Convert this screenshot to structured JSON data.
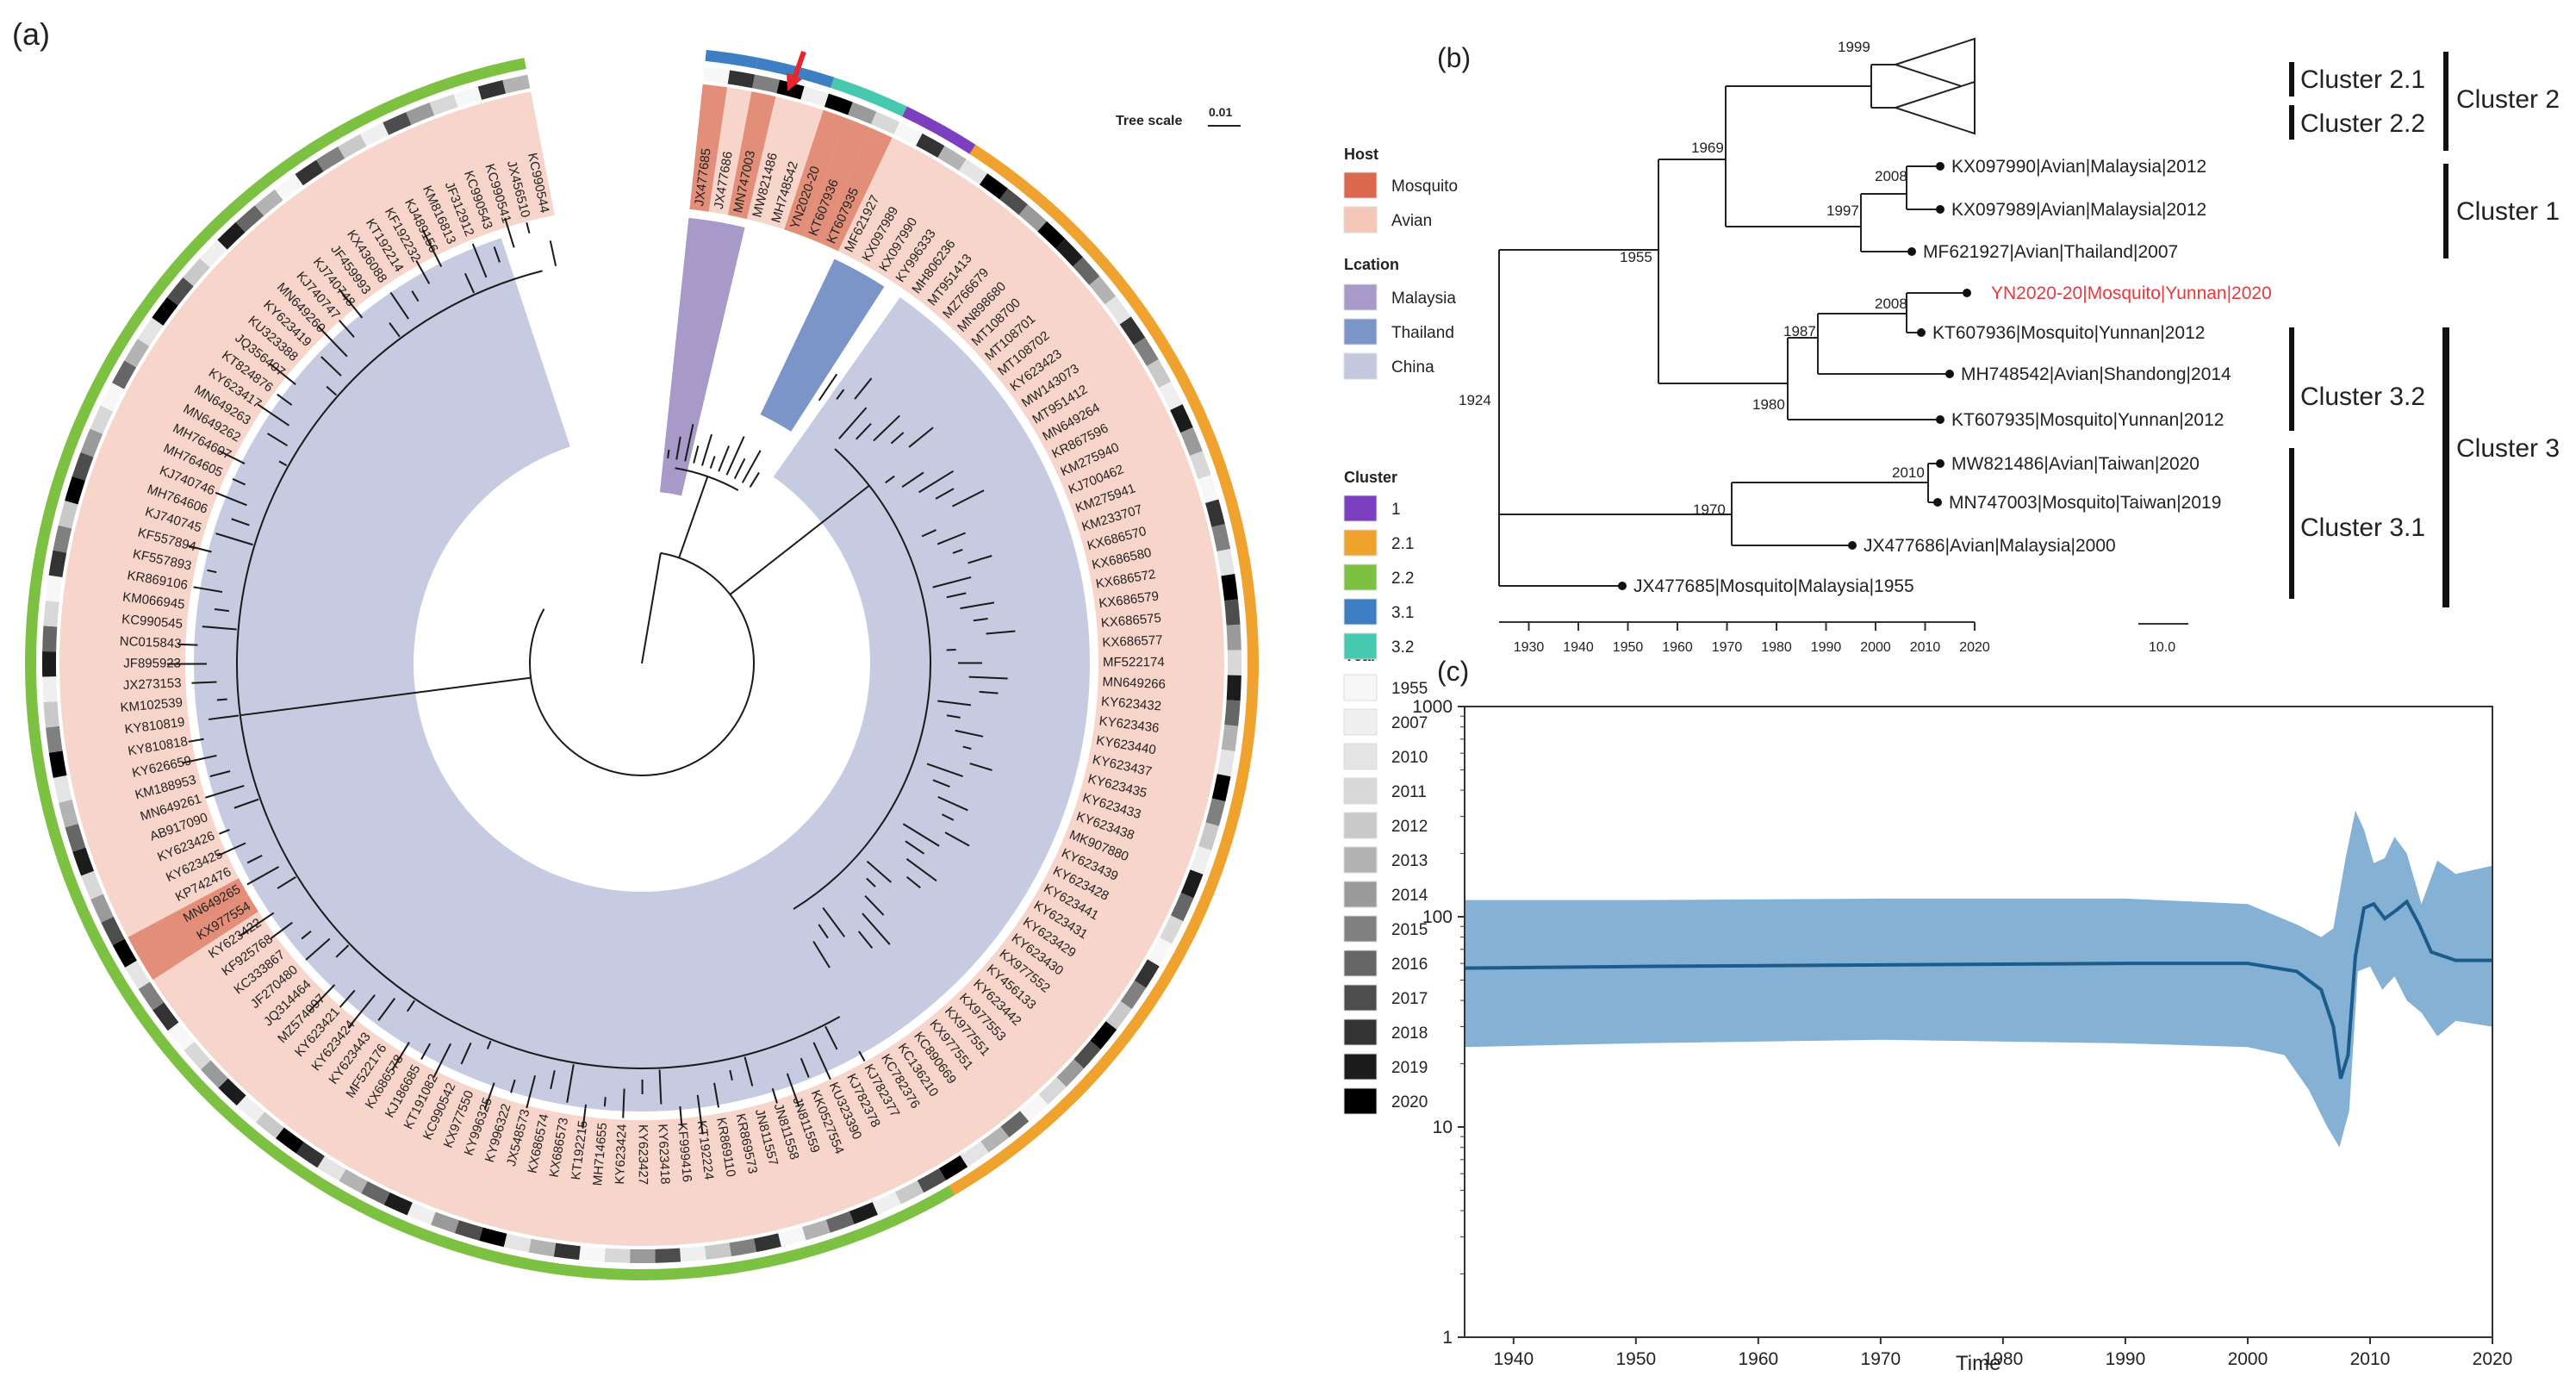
{
  "panels": {
    "a": "(a)",
    "b": "(b)",
    "c": "(c)"
  },
  "panel_a": {
    "tree_scale_label": "Tree scale",
    "tree_scale_value": "0.01",
    "legend": {
      "host_title": "Host",
      "host_items": [
        {
          "label": "Mosquito",
          "color": "#d9684c"
        },
        {
          "label": "Avian",
          "color": "#f4c7b8"
        }
      ],
      "location_title": "Lcation",
      "location_items": [
        {
          "label": "Malaysia",
          "color": "#a79ac8"
        },
        {
          "label": "Thailand",
          "color": "#7c95c8"
        },
        {
          "label": "China",
          "color": "#c3c8df"
        }
      ],
      "cluster_title": "Cluster",
      "cluster_items": [
        {
          "label": "1",
          "color": "#7b3fbf"
        },
        {
          "label": "2.1",
          "color": "#f0a22e"
        },
        {
          "label": "2.2",
          "color": "#7dc142"
        },
        {
          "label": "3.1",
          "color": "#3e7fc4"
        },
        {
          "label": "3.2",
          "color": "#47c9b0"
        }
      ],
      "year_title": "Year",
      "year_items": [
        {
          "label": "1955",
          "color": "#f7f7f7"
        },
        {
          "label": "2007",
          "color": "#efefef"
        },
        {
          "label": "2010",
          "color": "#e4e4e4"
        },
        {
          "label": "2011",
          "color": "#d8d8d8"
        },
        {
          "label": "2012",
          "color": "#c9c9c9"
        },
        {
          "label": "2013",
          "color": "#b3b3b3"
        },
        {
          "label": "2014",
          "color": "#9a9a9a"
        },
        {
          "label": "2015",
          "color": "#808080"
        },
        {
          "label": "2016",
          "color": "#666666"
        },
        {
          "label": "2017",
          "color": "#4d4d4d"
        },
        {
          "label": "2018",
          "color": "#333333"
        },
        {
          "label": "2019",
          "color": "#1c1c1c"
        },
        {
          "label": "2020",
          "color": "#000000"
        }
      ]
    },
    "tips": [
      "JX477685",
      "JX477686",
      "MN747003",
      "MW821486",
      "MH748542",
      "YN2020-20",
      "KT607936",
      "KT607935",
      "MF621927",
      "KX097989",
      "KX097990",
      "KY996333",
      "MH806236",
      "MT951413",
      "MZ766679",
      "MN898680",
      "MT108700",
      "MT108701",
      "MT108702",
      "KY623423",
      "MW143073",
      "MT951412",
      "MN649264",
      "KR867596",
      "KM275940",
      "KJ700462",
      "KM275941",
      "KM233707",
      "KX686570",
      "KX686580",
      "KX686572",
      "KX686579",
      "KX686575",
      "KX686577",
      "MF522174",
      "MN649266",
      "KY623432",
      "KY623436",
      "KY623440",
      "KY623437",
      "KY623435",
      "KY623433",
      "KY623438",
      "MK907880",
      "KY623439",
      "KY623428",
      "KY623441",
      "KY623431",
      "KY623429",
      "KY623430",
      "KX977552",
      "KY456133",
      "KY623442",
      "KX977553",
      "KX977551",
      "KX977551",
      "KC890669",
      "KC136210",
      "KC782376",
      "KJ782377",
      "KJ782378",
      "KU323390",
      "KK0527554",
      "JN811559",
      "JN811558",
      "JN811557",
      "KR869573",
      "KR869110",
      "KT192224",
      "KF999416",
      "KY623418",
      "KY623427",
      "KY623424",
      "MH714655",
      "KT192215",
      "KX686573",
      "KX686574",
      "JX548573",
      "KY996322",
      "KY996325",
      "KX977550",
      "KC990542",
      "KT191082",
      "KJ186685",
      "KX686578",
      "MF522176",
      "KY623443",
      "KY623424",
      "KY623421",
      "MZ574097",
      "JQ314464",
      "JF270480",
      "KC333867",
      "KF925768",
      "KY623422",
      "KX977554",
      "MN649265",
      "KP742476",
      "KY623425",
      "KY623426",
      "AB917090",
      "MN649261",
      "KM188953",
      "KY626659",
      "KY810818",
      "KY810819",
      "KM102539",
      "JX273153",
      "JF895923",
      "NC015843",
      "KC990545",
      "KM066945",
      "KR869106",
      "KF557893",
      "KF557894",
      "KJ740745",
      "MH764606",
      "KJ740746",
      "MH764605",
      "MH764607",
      "MN649262",
      "MN649263",
      "KY623417",
      "KT824876",
      "JQ356407",
      "KU323388",
      "KY623419",
      "MN649260",
      "KJ740747",
      "KJ740748",
      "JF459993",
      "KX436088",
      "KT192214",
      "KF192232",
      "KJ489156",
      "KM816813",
      "JF312912",
      "KC990543",
      "KC990541",
      "JX456510",
      "KC990544"
    ]
  },
  "chart_data": [
    {
      "type": "tree",
      "panel": "b",
      "axis_ticks": [
        "1930",
        "1940",
        "1950",
        "1960",
        "1970",
        "1980",
        "1990",
        "2000",
        "2010",
        "2020"
      ],
      "axis_range": [
        1924,
        2020
      ],
      "scale_bar_label": "10.0",
      "nodes": [
        {
          "date": "1924"
        },
        {
          "date": "1955"
        },
        {
          "date": "1969"
        },
        {
          "date": "1999"
        },
        {
          "date": "1997"
        },
        {
          "date": "2008"
        },
        {
          "date": "1980"
        },
        {
          "date": "1987"
        },
        {
          "date": "2008"
        },
        {
          "date": "1970"
        },
        {
          "date": "2010"
        }
      ],
      "leaves": [
        {
          "label": "KX097990|Avian|Malaysia|2012",
          "year": 2012,
          "highlight": false
        },
        {
          "label": "KX097989|Avian|Malaysia|2012",
          "year": 2012,
          "highlight": false
        },
        {
          "label": "MF621927|Avian|Thailand|2007",
          "year": 2007,
          "highlight": false
        },
        {
          "label": "YN2020-20|Mosquito|Yunnan|2020",
          "year": 2020,
          "highlight": true
        },
        {
          "label": "KT607936|Mosquito|Yunnan|2012",
          "year": 2012,
          "highlight": false
        },
        {
          "label": "MH748542|Avian|Shandong|2014",
          "year": 2014,
          "highlight": false
        },
        {
          "label": "KT607935|Mosquito|Yunnan|2012",
          "year": 2012,
          "highlight": false
        },
        {
          "label": "MW821486|Avian|Taiwan|2020",
          "year": 2020,
          "highlight": false
        },
        {
          "label": "MN747003|Mosquito|Taiwan|2019",
          "year": 2019,
          "highlight": false
        },
        {
          "label": "JX477686|Avian|Malaysia|2000",
          "year": 2000,
          "highlight": false
        },
        {
          "label": "JX477685|Mosquito|Malaysia|1955",
          "year": 1955,
          "highlight": false
        }
      ],
      "clusters": [
        "Cluster 2.1",
        "Cluster 2.2",
        "Cluster 2",
        "Cluster 1",
        "Cluster 3.2",
        "Cluster 3.1",
        "Cluster 3"
      ],
      "highlight_color": "#e8383d"
    },
    {
      "type": "area",
      "panel": "c",
      "title": "",
      "xlabel": "Time",
      "ylabel": "",
      "yscale": "log",
      "xlim": [
        1936,
        2020
      ],
      "ylim": [
        1,
        1000
      ],
      "x_ticks": [
        "1940",
        "1950",
        "1960",
        "1970",
        "1980",
        "1990",
        "2000",
        "2010",
        "2020"
      ],
      "y_ticks": [
        "1",
        "10",
        "100",
        "1000"
      ],
      "series": [
        {
          "name": "median",
          "x": [
            1936,
            1950,
            1970,
            1990,
            2000,
            2004,
            2006,
            2007,
            2007.6,
            2008.2,
            2008.8,
            2009.5,
            2010.3,
            2011.2,
            2012.2,
            2013,
            2014,
            2015,
            2017,
            2020
          ],
          "values": [
            57,
            58,
            59,
            60,
            60,
            55,
            45,
            30,
            17,
            22,
            65,
            110,
            115,
            98,
            108,
            118,
            92,
            68,
            62,
            62
          ]
        },
        {
          "name": "upper_95_hpd",
          "x": [
            1936,
            1950,
            1970,
            1990,
            2000,
            2004,
            2006,
            2007,
            2008,
            2008.8,
            2009.5,
            2010.3,
            2011.2,
            2012,
            2013,
            2014.2,
            2015.5,
            2017,
            2020
          ],
          "values": [
            120,
            120,
            122,
            122,
            115,
            92,
            80,
            88,
            190,
            320,
            260,
            180,
            190,
            240,
            200,
            115,
            185,
            160,
            175
          ]
        },
        {
          "name": "lower_95_hpd",
          "x": [
            1936,
            1950,
            1970,
            1990,
            2000,
            2003,
            2005,
            2006.5,
            2007.5,
            2008.3,
            2009,
            2010,
            2011,
            2012,
            2013,
            2014.2,
            2015.5,
            2017,
            2020
          ],
          "values": [
            24,
            25,
            26,
            25,
            24,
            22,
            15,
            10,
            8,
            12,
            55,
            58,
            45,
            52,
            40,
            35,
            27,
            32,
            30
          ]
        }
      ],
      "band_color": "#78a9cf",
      "line_color": "#1c5c8c"
    }
  ]
}
